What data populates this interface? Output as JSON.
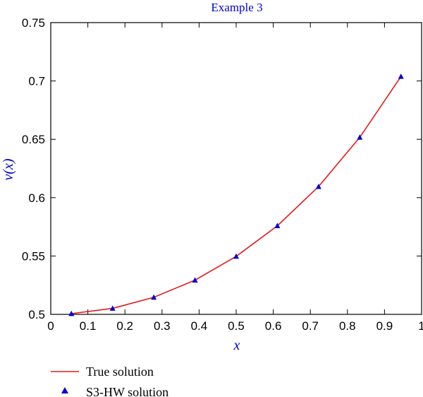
{
  "chart_data": {
    "type": "line",
    "title": "Example 3",
    "xlabel": "x",
    "ylabel": "v(x)",
    "xlim": [
      0,
      1
    ],
    "ylim": [
      0.5,
      0.75
    ],
    "x_ticks": [
      "0",
      "0.1",
      "0.2",
      "0.3",
      "0.4",
      "0.5",
      "0.6",
      "0.7",
      "0.8",
      "0.9",
      "1"
    ],
    "y_ticks": [
      "0.5",
      "0.55",
      "0.6",
      "0.65",
      "0.7",
      "0.75"
    ],
    "x_tick_values": [
      0,
      0.1,
      0.2,
      0.3,
      0.4,
      0.5,
      0.6,
      0.7,
      0.8,
      0.9,
      1.0
    ],
    "y_tick_values": [
      0.5,
      0.55,
      0.6,
      0.65,
      0.7,
      0.75
    ],
    "grid": false,
    "legend_position": "bottom-left",
    "series": [
      {
        "name": "True solution",
        "kind": "line",
        "color": "#e41a1c",
        "x": [
          0.0556,
          0.1667,
          0.2778,
          0.3889,
          0.5,
          0.6111,
          0.7222,
          0.8333,
          0.9444
        ],
        "y": [
          0.5006,
          0.5051,
          0.5146,
          0.5293,
          0.5497,
          0.5759,
          0.6095,
          0.6517,
          0.7038
        ]
      },
      {
        "name": "S3-HW solution",
        "kind": "scatter",
        "marker": "triangle",
        "color": "#0000cc",
        "x": [
          0.0556,
          0.1667,
          0.2778,
          0.3889,
          0.5,
          0.6111,
          0.7222,
          0.8333,
          0.9444
        ],
        "y": [
          0.5006,
          0.5051,
          0.5146,
          0.5293,
          0.5497,
          0.5759,
          0.6095,
          0.6517,
          0.7038
        ]
      }
    ]
  },
  "colors": {
    "title": "#0000cc",
    "axis_label": "#0000cc",
    "axis": "#000000"
  }
}
